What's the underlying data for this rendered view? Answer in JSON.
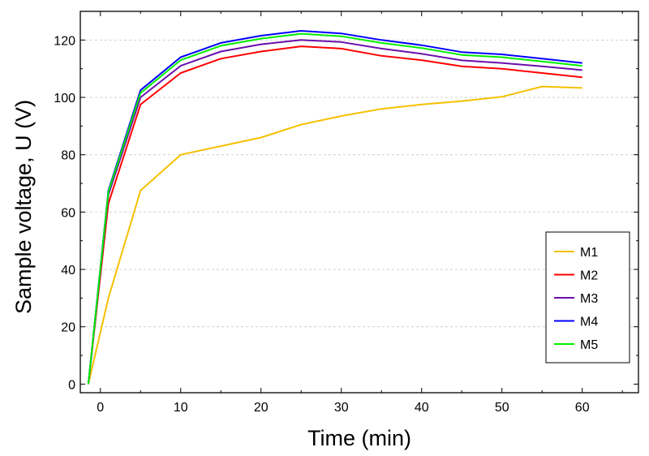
{
  "chart_data": {
    "type": "line",
    "title": "",
    "xlabel": "Time (min)",
    "ylabel": "Sample voltage, U (V)",
    "xlim": [
      -2.5,
      67
    ],
    "ylim": [
      -3,
      130
    ],
    "xticks": [
      0,
      10,
      20,
      30,
      40,
      50,
      60
    ],
    "yticks": [
      0,
      20,
      40,
      60,
      80,
      100,
      120
    ],
    "grid": "horizontal dashed",
    "legend_position": "bottom-right",
    "x": [
      -1.5,
      1,
      5,
      10,
      15,
      20,
      25,
      30,
      35,
      40,
      45,
      50,
      55,
      60
    ],
    "series": [
      {
        "name": "M1",
        "color": "#f5c000",
        "values": [
          0,
          30,
          67.5,
          80,
          83,
          86,
          90.5,
          93.5,
          96,
          97.5,
          98.7,
          100.2,
          103.8,
          103.3
        ]
      },
      {
        "name": "M2",
        "color": "#ff0000",
        "values": [
          0,
          63,
          97.5,
          108.5,
          113.5,
          116,
          117.8,
          117,
          114.5,
          113,
          110.8,
          110,
          108.5,
          107
        ]
      },
      {
        "name": "M3",
        "color": "#6a0dad",
        "values": [
          0,
          66,
          100,
          111,
          116,
          118.5,
          120,
          119.3,
          117,
          115.2,
          112.9,
          112,
          110.8,
          109.5
        ]
      },
      {
        "name": "M4",
        "color": "#0000ff",
        "values": [
          0,
          67.5,
          102.5,
          114,
          119,
          121.5,
          123.2,
          122.3,
          120,
          118.2,
          115.8,
          115,
          113.5,
          112
        ]
      },
      {
        "name": "M5",
        "color": "#00ee00",
        "values": [
          0,
          67,
          101.5,
          113,
          118,
          120.5,
          122.2,
          121.3,
          119,
          117.2,
          114.8,
          114,
          112.5,
          111
        ]
      }
    ]
  }
}
